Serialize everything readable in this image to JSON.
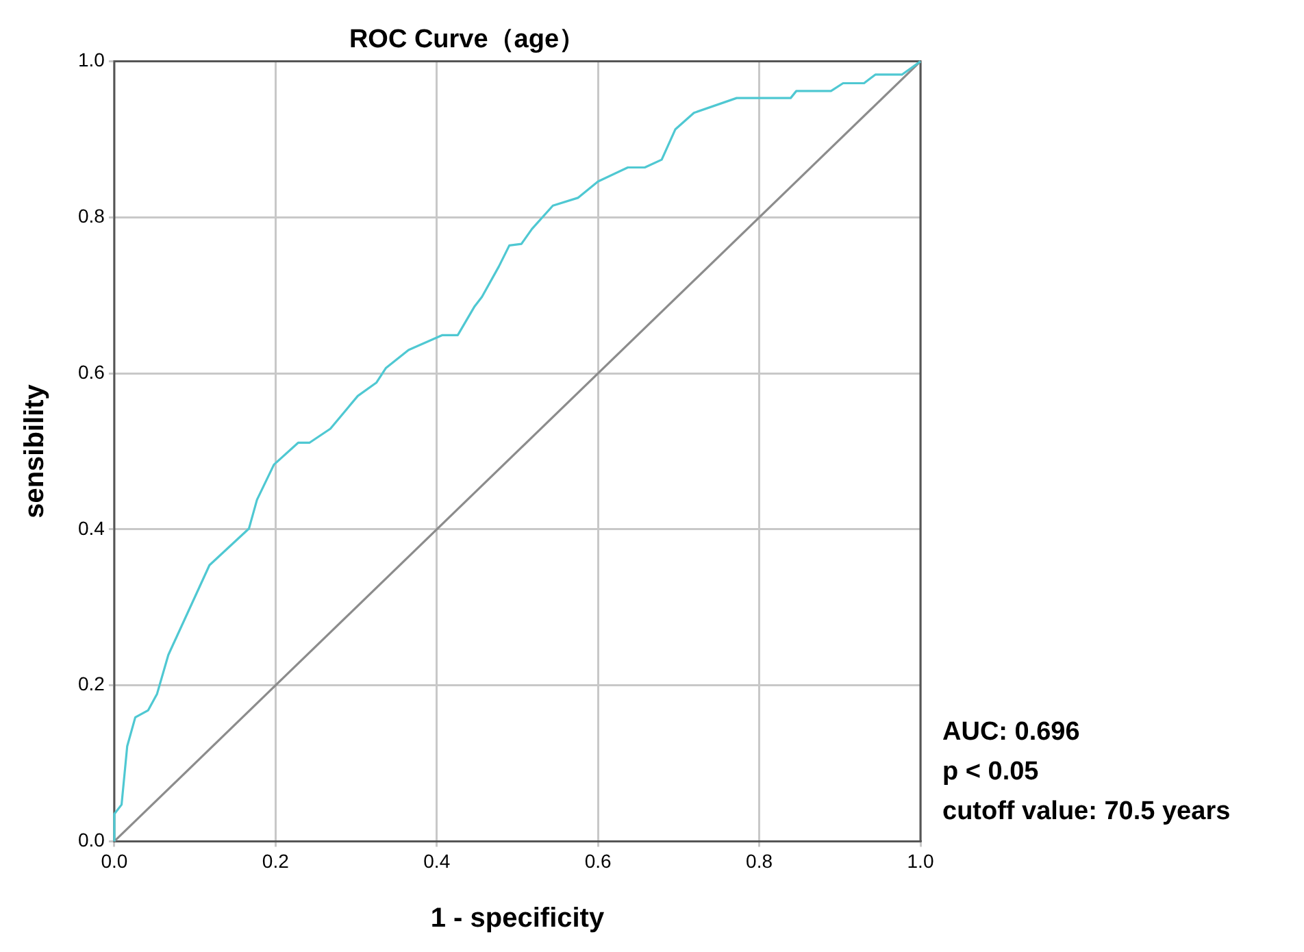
{
  "chart_data": {
    "type": "line",
    "title": "ROC Curve（age）",
    "xlabel": "1 - specificity",
    "ylabel": "sensibility",
    "xlim": [
      0,
      1
    ],
    "ylim": [
      0,
      1
    ],
    "xticks": [
      {
        "value": 0,
        "label": "0.0"
      },
      {
        "value": 0.2,
        "label": "0.2"
      },
      {
        "value": 0.4,
        "label": "0.4"
      },
      {
        "value": 0.6,
        "label": "0.6"
      },
      {
        "value": 0.8,
        "label": "0.8"
      },
      {
        "value": 1,
        "label": "1.0"
      }
    ],
    "yticks": [
      {
        "value": 0,
        "label": "0.0"
      },
      {
        "value": 0.2,
        "label": "0.2"
      },
      {
        "value": 0.4,
        "label": "0.4"
      },
      {
        "value": 0.6,
        "label": "0.6"
      },
      {
        "value": 0.8,
        "label": "0.8"
      },
      {
        "value": 1,
        "label": "1.0"
      }
    ],
    "grid": true,
    "legend": false,
    "marker": "none",
    "line_style": "solid",
    "series": [
      {
        "color": "#4fc8d2",
        "x": [
          0,
          0,
          0.009,
          0.016,
          0.026,
          0.042,
          0.053,
          0.067,
          0.118,
          0.167,
          0.177,
          0.198,
          0.228,
          0.242,
          0.268,
          0.302,
          0.325,
          0.337,
          0.365,
          0.407,
          0.426,
          0.447,
          0.456,
          0.477,
          0.49,
          0.505,
          0.518,
          0.544,
          0.575,
          0.6,
          0.637,
          0.658,
          0.679,
          0.696,
          0.719,
          0.772,
          0.839,
          0.846,
          0.889,
          0.904,
          0.93,
          0.944,
          0.977,
          1
        ],
        "values": [
          0,
          0.035,
          0.047,
          0.122,
          0.159,
          0.168,
          0.189,
          0.239,
          0.354,
          0.401,
          0.438,
          0.483,
          0.511,
          0.511,
          0.529,
          0.571,
          0.588,
          0.607,
          0.63,
          0.649,
          0.649,
          0.686,
          0.698,
          0.737,
          0.764,
          0.766,
          0.785,
          0.815,
          0.825,
          0.846,
          0.864,
          0.864,
          0.874,
          0.913,
          0.934,
          0.953,
          0.953,
          0.962,
          0.962,
          0.972,
          0.972,
          0.983,
          0.983,
          1
        ]
      },
      {
        "color": "#8c8c8c",
        "x": [
          0,
          1
        ],
        "values": [
          0,
          1
        ]
      }
    ],
    "annotations": [
      "AUC: 0.696",
      "p < 0.05",
      "cutoff value: 70.5 years"
    ]
  }
}
